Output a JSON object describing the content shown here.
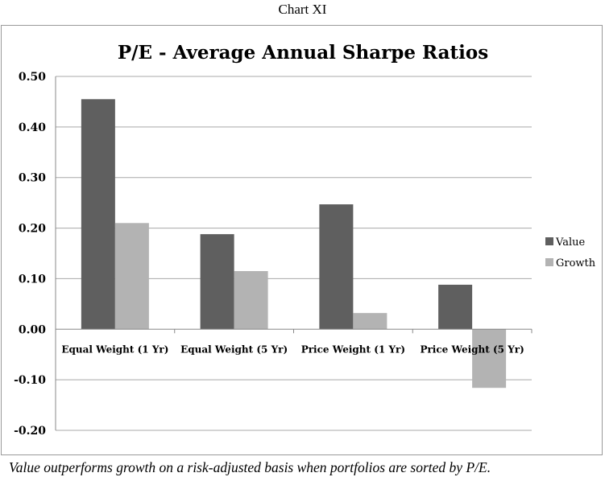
{
  "caption_top": "Chart XI",
  "caption_bottom": "Value outperforms growth on a risk-adjusted basis when portfolios are sorted by P/E.",
  "colors": {
    "value": "#5f5f5f",
    "growth": "#b3b3b3",
    "gridline": "#a8a8a8"
  },
  "chart_data": {
    "type": "bar",
    "title": "P/E - Average Annual Sharpe Ratios",
    "categories": [
      "Equal Weight (1 Yr)",
      "Equal Weight (5 Yr)",
      "Price Weight (1 Yr)",
      "Price Weight (5 Yr)"
    ],
    "series": [
      {
        "name": "Value",
        "values": [
          0.455,
          0.188,
          0.247,
          0.088
        ]
      },
      {
        "name": "Growth",
        "values": [
          0.21,
          0.115,
          0.032,
          -0.116
        ]
      }
    ],
    "ylim": [
      -0.2,
      0.5
    ],
    "yticks": [
      "0.50",
      "0.40",
      "0.30",
      "0.20",
      "0.10",
      "0.00",
      "-0.10",
      "-0.20"
    ],
    "grid": true,
    "legend_position": "right"
  }
}
